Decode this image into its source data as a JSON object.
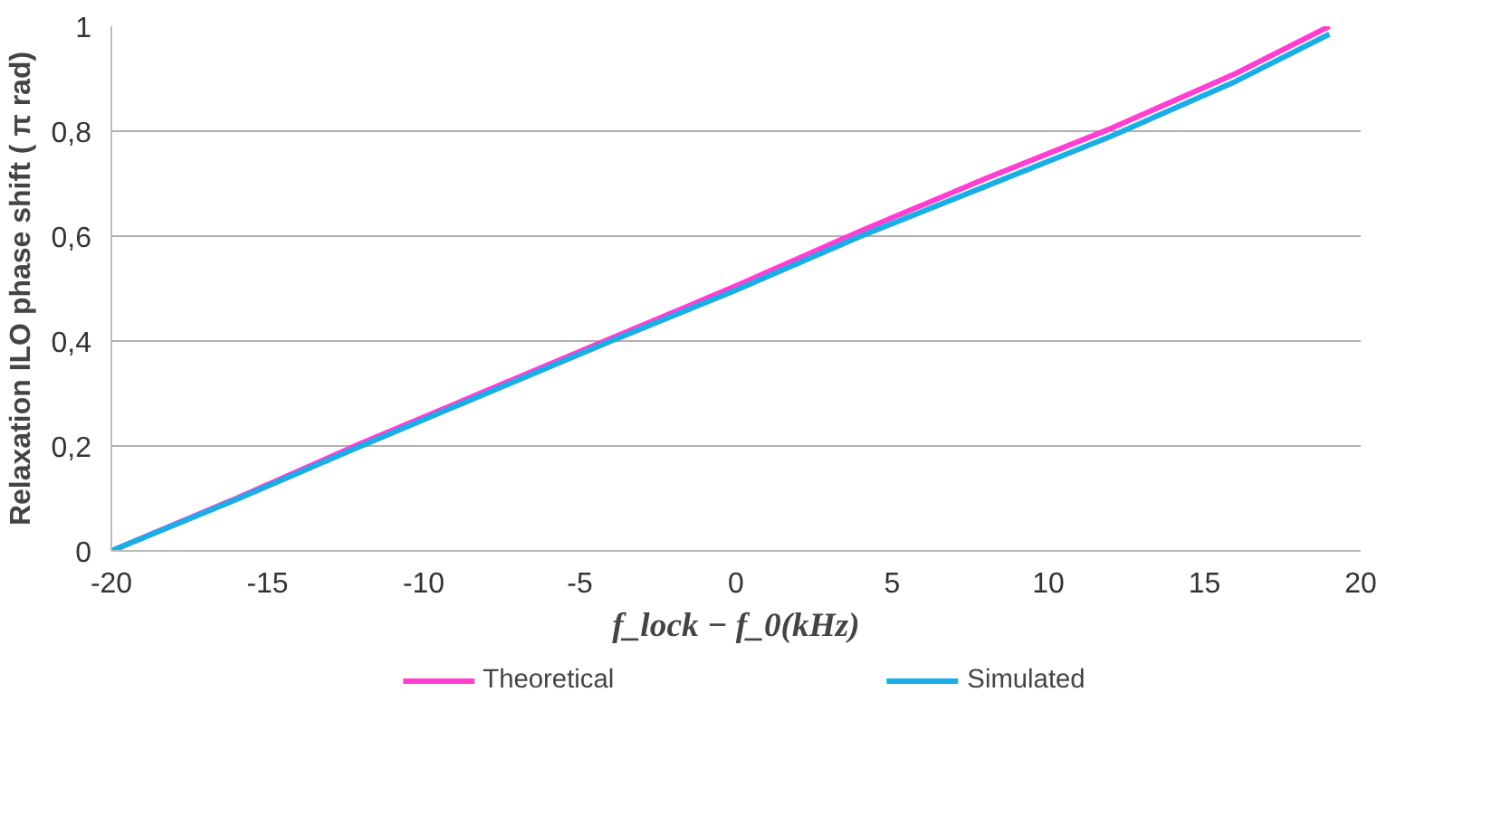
{
  "chart_data": {
    "type": "line",
    "xlabel": "f_lock − f_0(kHz)",
    "ylabel": "Relaxation ILO phase shift ( π rad)",
    "series": [
      {
        "name": "Theoretical",
        "color": "#ff3fd2",
        "x": [
          -20,
          -16,
          -12,
          -8,
          -4,
          0,
          4,
          8,
          12,
          16,
          19
        ],
        "values": [
          0,
          0.1,
          0.205,
          0.305,
          0.405,
          0.505,
          0.61,
          0.71,
          0.805,
          0.91,
          1.0
        ]
      },
      {
        "name": "Simulated",
        "color": "#1aaee6",
        "x": [
          -20,
          -16,
          -12,
          -8,
          -4,
          0,
          4,
          8,
          12,
          16,
          19
        ],
        "values": [
          0,
          0.098,
          0.2,
          0.3,
          0.4,
          0.497,
          0.6,
          0.695,
          0.79,
          0.895,
          0.985
        ]
      }
    ],
    "xlim": [
      -20,
      20
    ],
    "ylim": [
      0,
      1
    ],
    "xticks": [
      -20,
      -15,
      -10,
      -5,
      0,
      5,
      10,
      15,
      20
    ],
    "yticks": [
      0,
      {
        "value": 0.2,
        "label": "0,2"
      },
      {
        "value": 0.4,
        "label": "0,4"
      },
      {
        "value": 0.6,
        "label": "0,6"
      },
      {
        "value": 0.8,
        "label": "0,8"
      },
      1
    ],
    "grid": "y",
    "legend": "bottom",
    "marker": "none",
    "line_style": "solid"
  }
}
